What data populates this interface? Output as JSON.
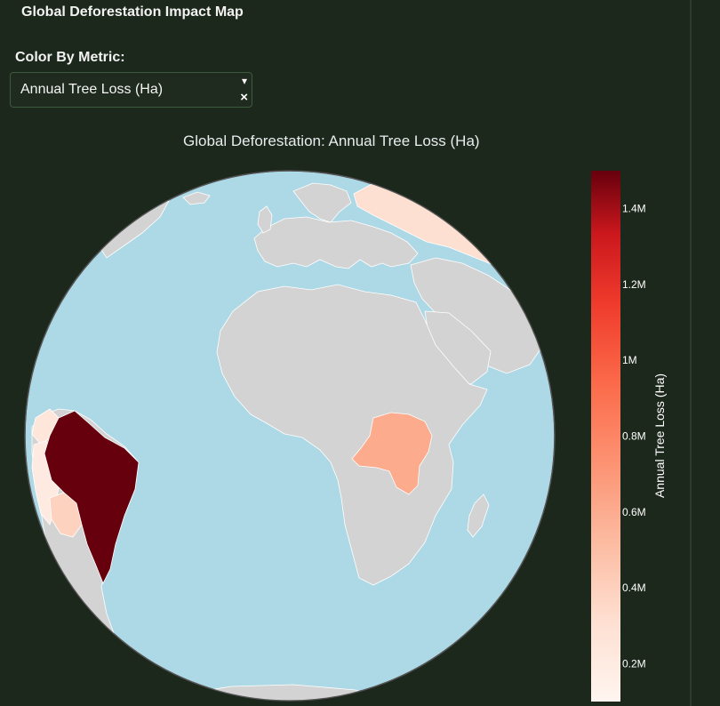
{
  "app": {
    "title": "Global Deforestation Impact Map"
  },
  "controls": {
    "metric_label": "Color By Metric:",
    "metric_value": "Annual Tree Loss (Ha)",
    "dropdown_arrow_icon": "caret-down-icon",
    "clear_icon": "clear-icon"
  },
  "chart_data": {
    "type": "choropleth",
    "projection": "orthographic",
    "title": "Global Deforestation: Annual Tree Loss (Ha)",
    "metric": "Annual Tree Loss (Ha)",
    "colorscale": "Reds",
    "range": [
      100000,
      1500000
    ],
    "colorbar": {
      "title": "Annual Tree Loss (Ha)",
      "tickvals": [
        200000,
        400000,
        600000,
        800000,
        1000000,
        1200000,
        1400000
      ],
      "ticktext": [
        "0.2M",
        "0.4M",
        "0.6M",
        "0.8M",
        "1M",
        "1.2M",
        "1.4M"
      ],
      "position": "right"
    },
    "colors": {
      "ocean": "#add8e6",
      "land": "#d3d3d3",
      "scale_low": "#fff5f0",
      "scale_mid": "#fb6a4a",
      "scale_high": "#67000d"
    },
    "regions": [
      {
        "name": "Brazil",
        "value": 1500000
      },
      {
        "name": "Democratic Republic of the Congo",
        "value": 500000
      },
      {
        "name": "Russia",
        "value": 250000
      },
      {
        "name": "Bolivia",
        "value": 350000
      },
      {
        "name": "Peru",
        "value": 200000
      },
      {
        "name": "Colombia",
        "value": 150000
      }
    ]
  }
}
